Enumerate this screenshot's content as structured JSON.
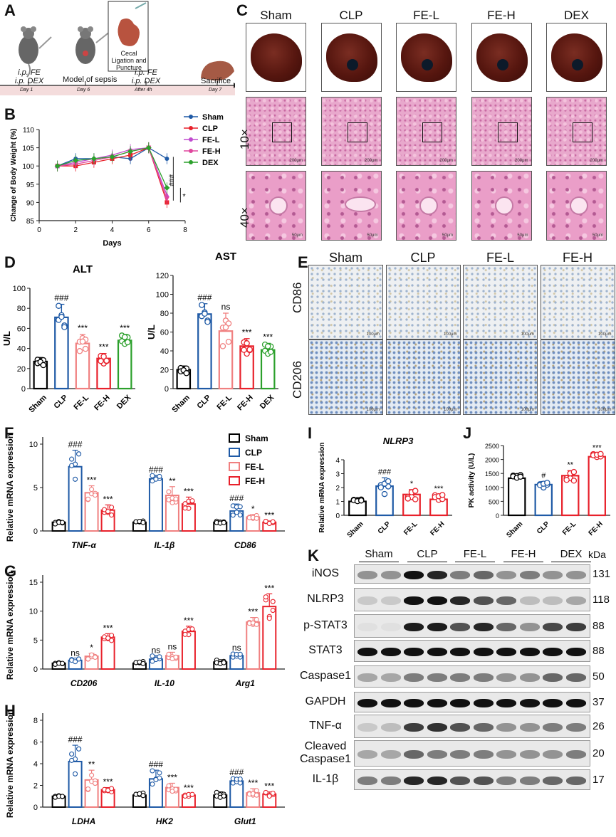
{
  "panels": {
    "A": "A",
    "B": "B",
    "C": "C",
    "D": "D",
    "E": "E",
    "F": "F",
    "G": "G",
    "H": "H",
    "I": "I",
    "J": "J",
    "K": "K"
  },
  "panelA": {
    "steps": [
      "i.p. FE\ni.p. DEX",
      "Model of sepsis",
      "i.p. FE\ni.p. DEX",
      "Sacrifice"
    ],
    "step1": "i.p. FE",
    "step1b": "i.p. DEX",
    "model": "Model of sepsis",
    "step3": "i.p. FE",
    "step3b": "i.p. DEX",
    "sacrifice": "Sacrifice",
    "days": [
      "Day 1",
      "Day 6",
      "After 4h",
      "Day 7"
    ],
    "inset": "Cecal Ligation and Puncture"
  },
  "panelC": {
    "groups": [
      "Sham",
      "CLP",
      "FE-L",
      "FE-H",
      "DEX"
    ],
    "mag": [
      "10×",
      "40×"
    ],
    "scale10": "200μm",
    "scale40": "50μm"
  },
  "panelE": {
    "groups": [
      "Sham",
      "CLP",
      "FE-L",
      "FE-H"
    ],
    "rows": [
      "CD86",
      "CD206"
    ],
    "scale": "100μm"
  },
  "panelK": {
    "groups": [
      "Sham",
      "CLP",
      "FE-L",
      "FE-H",
      "DEX"
    ],
    "unit": "kDa",
    "rows": [
      {
        "name": "iNOS",
        "kda": "131"
      },
      {
        "name": "NLRP3",
        "kda": "118"
      },
      {
        "name": "p-STAT3",
        "kda": "88"
      },
      {
        "name": "STAT3",
        "kda": "88"
      },
      {
        "name": "Caspase1",
        "kda": "50"
      },
      {
        "name": "GAPDH",
        "kda": "37"
      },
      {
        "name": "TNF-α",
        "kda": "26"
      },
      {
        "name": "Cleaved Caspase1",
        "kda": "20"
      },
      {
        "name": "IL-1β",
        "kda": "17"
      }
    ]
  },
  "colors": {
    "sham": "#000000",
    "clp": "#1f5aa6",
    "fel": "#f08080",
    "feh": "#e8212b",
    "dex": "#2ca02c",
    "felLine": "#c04ccf"
  },
  "chart_data": [
    {
      "id": "B",
      "type": "line",
      "ylabel": "Change of Body Weight (%)",
      "xlabel": "Days",
      "ylim": [
        85,
        110
      ],
      "xlim": [
        0,
        8
      ],
      "yticks": [
        85,
        90,
        95,
        100,
        105,
        110
      ],
      "xticks": [
        0,
        2,
        4,
        6,
        8
      ],
      "series": [
        {
          "name": "Sham",
          "x": [
            1,
            2,
            3,
            4,
            5,
            6,
            7
          ],
          "values": [
            100,
            102,
            102,
            102.5,
            102,
            105,
            102
          ]
        },
        {
          "name": "CLP",
          "x": [
            1,
            2,
            3,
            4,
            5,
            6,
            7
          ],
          "values": [
            100,
            100,
            101,
            102,
            103,
            105,
            90
          ]
        },
        {
          "name": "FE-L",
          "x": [
            1,
            2,
            3,
            4,
            5,
            6,
            7
          ],
          "values": [
            100,
            101,
            102,
            103,
            104.5,
            105,
            92
          ]
        },
        {
          "name": "FE-H",
          "x": [
            1,
            2,
            3,
            4,
            5,
            6,
            7
          ],
          "values": [
            100,
            100.5,
            101.5,
            102.5,
            104,
            105,
            91
          ]
        },
        {
          "name": "DEX",
          "x": [
            1,
            2,
            3,
            4,
            5,
            6,
            7
          ],
          "values": [
            100,
            101.5,
            102,
            102.5,
            104,
            105,
            94
          ]
        }
      ],
      "annotations": [
        "###",
        "*"
      ]
    },
    {
      "id": "D-ALT",
      "type": "bar",
      "title": "ALT",
      "ylabel": "U/L",
      "ylim": [
        0,
        100
      ],
      "yticks": [
        0,
        20,
        40,
        60,
        80,
        100
      ],
      "categories": [
        "Sham",
        "CLP",
        "FE-L",
        "FE-H",
        "DEX"
      ],
      "values": [
        27,
        71,
        45,
        30,
        48
      ],
      "errors": [
        4,
        13,
        9,
        5,
        6
      ],
      "labels": [
        "",
        "###",
        "***",
        "***",
        "***"
      ]
    },
    {
      "id": "D-AST",
      "type": "bar",
      "title": "AST",
      "ylabel": "U/L",
      "ylim": [
        0,
        120
      ],
      "yticks": [
        0,
        20,
        40,
        60,
        80,
        100,
        120
      ],
      "categories": [
        "Sham",
        "CLP",
        "FE-L",
        "FE-H",
        "DEX"
      ],
      "values": [
        20,
        79,
        61,
        45,
        41
      ],
      "errors": [
        4,
        11,
        19,
        8,
        7
      ],
      "labels": [
        "",
        "###",
        "ns",
        "***",
        "***"
      ]
    },
    {
      "id": "F",
      "type": "bar",
      "ylabel": "Relative mRNA expression",
      "ylim": [
        0,
        10
      ],
      "yticks": [
        0,
        5,
        10
      ],
      "categories": [
        "TNF-α",
        "IL-1β",
        "CD86"
      ],
      "series": [
        {
          "name": "Sham",
          "values": [
            1.0,
            1.0,
            1.0
          ],
          "errors": [
            0.2,
            0.15,
            0.15
          ]
        },
        {
          "name": "CLP",
          "values": [
            7.4,
            6.0,
            2.3
          ],
          "errors": [
            1.9,
            0.4,
            0.8
          ]
        },
        {
          "name": "FE-L",
          "values": [
            4.4,
            4.1,
            1.6
          ],
          "errors": [
            0.8,
            1.0,
            0.3
          ]
        },
        {
          "name": "FE-H",
          "values": [
            2.4,
            3.1,
            1.0
          ],
          "errors": [
            0.6,
            0.8,
            0.15
          ]
        }
      ],
      "labels": [
        [
          "",
          "###",
          "***",
          "***"
        ],
        [
          "",
          "###",
          "**",
          "***"
        ],
        [
          "",
          "###",
          "*",
          "***"
        ]
      ]
    },
    {
      "id": "G",
      "type": "bar",
      "ylabel": "Relative mRNA expression",
      "ylim": [
        0,
        15
      ],
      "yticks": [
        0,
        5,
        10,
        15
      ],
      "categories": [
        "CD206",
        "IL-10",
        "Arg1"
      ],
      "series": [
        {
          "name": "Sham",
          "values": [
            1.0,
            1.0,
            1.2
          ],
          "errors": [
            0.2,
            0.3,
            0.4
          ]
        },
        {
          "name": "CLP",
          "values": [
            1.5,
            1.7,
            2.3
          ],
          "errors": [
            0.3,
            0.6,
            0.4
          ]
        },
        {
          "name": "FE-L",
          "values": [
            2.2,
            2.3,
            8.1
          ],
          "errors": [
            0.5,
            0.6,
            0.8
          ]
        },
        {
          "name": "FE-H",
          "values": [
            5.5,
            6.5,
            10.8
          ],
          "errors": [
            0.6,
            0.9,
            2.2
          ]
        }
      ],
      "labels": [
        [
          "",
          "ns",
          "*",
          "***"
        ],
        [
          "",
          "ns",
          "ns",
          "***"
        ],
        [
          "",
          "ns",
          "***",
          "***"
        ]
      ]
    },
    {
      "id": "H",
      "type": "bar",
      "ylabel": "Relative mRNA expression",
      "ylim": [
        0,
        8
      ],
      "yticks": [
        0,
        2,
        4,
        6,
        8
      ],
      "categories": [
        "LDHA",
        "HK2",
        "Glut1"
      ],
      "series": [
        {
          "name": "Sham",
          "values": [
            1.0,
            1.1,
            1.1
          ],
          "errors": [
            0.1,
            0.2,
            0.3
          ]
        },
        {
          "name": "CLP",
          "values": [
            4.2,
            2.6,
            2.4
          ],
          "errors": [
            1.5,
            0.8,
            0.3
          ]
        },
        {
          "name": "FE-L",
          "values": [
            2.5,
            1.8,
            1.3
          ],
          "errors": [
            0.9,
            0.4,
            0.4
          ]
        },
        {
          "name": "FE-H",
          "values": [
            1.6,
            1.1,
            1.2
          ],
          "errors": [
            0.2,
            0.15,
            0.2
          ]
        }
      ],
      "labels": [
        [
          "",
          "###",
          "**",
          "***"
        ],
        [
          "",
          "###",
          "***",
          "***"
        ],
        [
          "",
          "###",
          "***",
          "***"
        ]
      ]
    },
    {
      "id": "I",
      "type": "bar",
      "title": "NLRP3",
      "ylabel": "Relative mRNA expression",
      "ylim": [
        0,
        4
      ],
      "yticks": [
        0,
        1,
        2,
        3,
        4
      ],
      "categories": [
        "Sham",
        "CLP",
        "FE-L",
        "FE-H"
      ],
      "values": [
        1.0,
        2.1,
        1.5,
        1.15
      ],
      "errors": [
        0.15,
        0.6,
        0.35,
        0.35
      ],
      "labels": [
        "",
        "###",
        "*",
        "***"
      ]
    },
    {
      "id": "J",
      "type": "bar",
      "ylabel": "PK activity (U/L)",
      "ylim": [
        0,
        2500
      ],
      "yticks": [
        0,
        500,
        1000,
        1500,
        2000,
        2500
      ],
      "categories": [
        "Sham",
        "CLP",
        "FE-L",
        "FE-H"
      ],
      "values": [
        1330,
        1100,
        1420,
        2100
      ],
      "errors": [
        120,
        110,
        180,
        110
      ],
      "labels": [
        "",
        "#",
        "**",
        "***"
      ]
    }
  ]
}
